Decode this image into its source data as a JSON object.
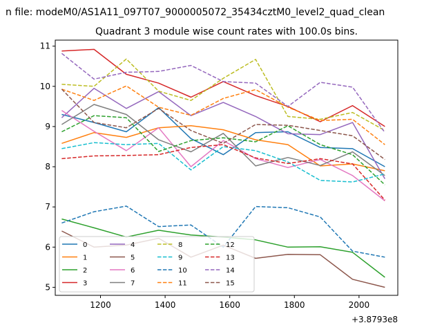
{
  "figure": {
    "suptitle": "n file: modeM0/AS1A11_097T07_9000005072_35434cztM0_level2_quad_clean",
    "title": "Quadrant 3 module wise count rates with 100.0s bins.",
    "x_offset_label": "+3.8793e8"
  },
  "chart_data": {
    "type": "line",
    "title": "Quadrant 3 module wise count rates with 100.0s bins.",
    "xlabel": "",
    "ylabel": "",
    "xlim": [
      1060,
      2120
    ],
    "ylim": [
      4.8,
      11.15
    ],
    "x_offset": 387930000,
    "x_ticks": [
      1200,
      1400,
      1600,
      1800,
      2000
    ],
    "y_ticks": [
      5,
      6,
      7,
      8,
      9,
      10,
      11
    ],
    "grid": false,
    "legend_placement": "lower-left",
    "x": [
      1080,
      1180,
      1280,
      1380,
      1480,
      1580,
      1680,
      1780,
      1880,
      1980,
      2080
    ],
    "series": [
      {
        "name": "0",
        "color": "#1f77b4",
        "dash": "solid",
        "values": [
          9.3,
          9.1,
          8.87,
          9.47,
          8.7,
          8.3,
          8.85,
          8.87,
          8.48,
          8.45,
          8.0
        ]
      },
      {
        "name": "1",
        "color": "#ff7f0e",
        "dash": "solid",
        "values": [
          8.58,
          8.85,
          8.73,
          8.97,
          9.02,
          8.92,
          8.67,
          8.55,
          8.02,
          8.07,
          7.9
        ]
      },
      {
        "name": "2",
        "color": "#2ca02c",
        "dash": "solid",
        "values": [
          6.7,
          6.48,
          6.25,
          6.42,
          6.3,
          6.25,
          6.18,
          6.0,
          6.01,
          5.87,
          5.25
        ]
      },
      {
        "name": "3",
        "color": "#d62728",
        "dash": "solid",
        "values": [
          10.88,
          10.92,
          10.3,
          10.08,
          9.73,
          10.12,
          9.77,
          9.5,
          9.12,
          9.52,
          9.0
        ]
      },
      {
        "name": "4",
        "color": "#9467bd",
        "dash": "solid",
        "values": [
          9.22,
          9.95,
          9.45,
          9.87,
          9.27,
          9.6,
          9.25,
          8.82,
          8.8,
          9.1,
          7.7
        ]
      },
      {
        "name": "5",
        "color": "#8c564b",
        "dash": "solid",
        "values": [
          6.4,
          6.0,
          6.05,
          6.22,
          5.75,
          6.05,
          5.72,
          5.82,
          5.81,
          5.2,
          5.0
        ]
      },
      {
        "name": "6",
        "color": "#e377c2",
        "dash": "solid",
        "values": [
          9.4,
          8.88,
          8.4,
          8.97,
          8.0,
          8.65,
          8.2,
          7.98,
          8.18,
          7.78,
          7.15
        ]
      },
      {
        "name": "7",
        "color": "#7f7f7f",
        "dash": "solid",
        "values": [
          9.05,
          9.55,
          9.3,
          8.67,
          8.37,
          8.83,
          8.02,
          8.23,
          8.03,
          8.37,
          7.78
        ]
      },
      {
        "name": "8",
        "color": "#bcbd22",
        "dash": "dashed",
        "values": [
          10.05,
          10.0,
          10.68,
          9.88,
          9.65,
          10.2,
          10.67,
          9.25,
          9.18,
          9.35,
          8.9
        ]
      },
      {
        "name": "9",
        "color": "#17becf",
        "dash": "dashed",
        "values": [
          8.45,
          8.6,
          8.55,
          8.58,
          7.92,
          8.5,
          8.4,
          8.12,
          7.66,
          7.62,
          7.82
        ]
      },
      {
        "name": "10",
        "color": "#1f77b4",
        "dash": "dashed",
        "values": [
          6.6,
          6.88,
          7.02,
          6.51,
          6.55,
          6.0,
          7.01,
          6.98,
          6.75,
          5.9,
          5.75
        ]
      },
      {
        "name": "11",
        "color": "#ff7f0e",
        "dash": "dashed",
        "values": [
          9.93,
          9.65,
          10.01,
          9.48,
          9.28,
          9.7,
          9.92,
          9.48,
          9.15,
          9.18,
          8.55
        ]
      },
      {
        "name": "12",
        "color": "#2ca02c",
        "dash": "dashed",
        "values": [
          8.87,
          9.27,
          9.22,
          8.38,
          8.65,
          8.72,
          8.62,
          9.02,
          8.55,
          8.3,
          7.55
        ]
      },
      {
        "name": "13",
        "color": "#d62728",
        "dash": "dashed",
        "values": [
          8.2,
          8.27,
          8.28,
          8.3,
          8.48,
          8.55,
          8.22,
          8.08,
          8.2,
          8.07,
          7.17
        ]
      },
      {
        "name": "14",
        "color": "#9467bd",
        "dash": "dashed",
        "values": [
          10.82,
          10.18,
          10.35,
          10.37,
          10.52,
          10.12,
          10.08,
          9.5,
          10.1,
          9.98,
          8.85
        ]
      },
      {
        "name": "15",
        "color": "#8c564b",
        "dash": "dashed",
        "values": [
          9.93,
          9.1,
          8.97,
          9.45,
          8.9,
          8.58,
          9.05,
          9.03,
          8.9,
          8.77,
          8.18
        ]
      }
    ]
  }
}
